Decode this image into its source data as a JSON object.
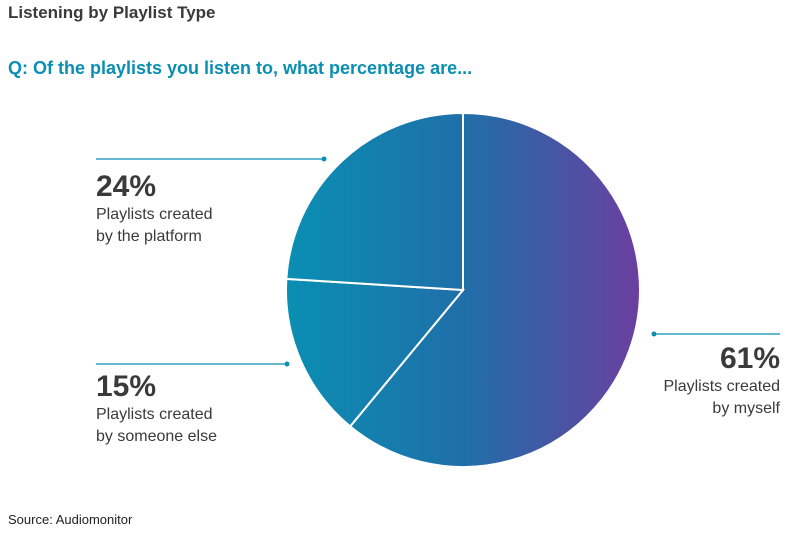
{
  "header": {
    "title": "Listening by Playlist Type",
    "question": "Q: Of the playlists you listen to, what percentage are..."
  },
  "footer": {
    "source": "Source: Audiomonitor"
  },
  "colors": {
    "gradient_start": "#0a8fb3",
    "gradient_mid": "#1f6fa8",
    "gradient_end": "#6b3fa0",
    "leader_line": "#0a8fb3"
  },
  "chart_data": {
    "type": "pie",
    "title": "",
    "slices": [
      {
        "label": "Playlists created by myself",
        "lines": [
          "Playlists created",
          "by myself"
        ],
        "value": 61,
        "display": "61%"
      },
      {
        "label": "Playlists created by someone else",
        "lines": [
          "Playlists created",
          "by someone else"
        ],
        "value": 15,
        "display": "15%"
      },
      {
        "label": "Playlists created by the platform",
        "lines": [
          "Playlists created",
          "by the platform"
        ],
        "value": 24,
        "display": "24%"
      }
    ]
  }
}
